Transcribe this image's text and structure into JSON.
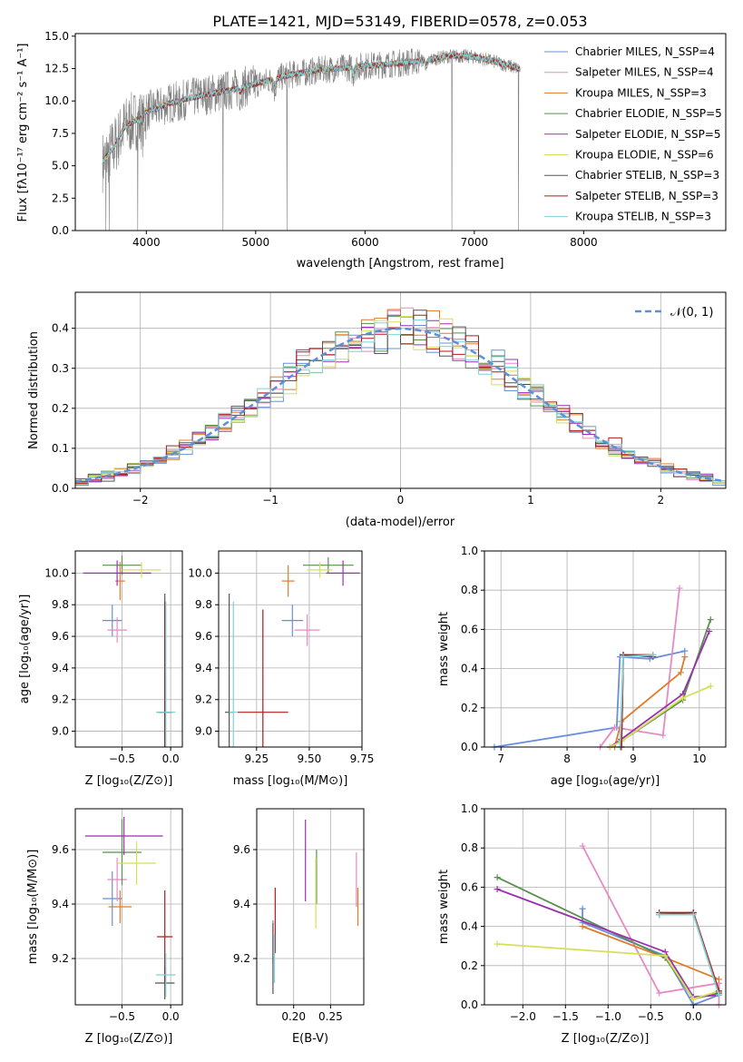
{
  "colors": {
    "chabrier_miles": "#6a8fd9",
    "salpeter_miles": "#e58ac4",
    "kroupa_miles": "#e07b2a",
    "chabrier_elodie": "#5a8f4e",
    "salpeter_elodie": "#9b2fb0",
    "kroupa_elodie": "#d5e05a",
    "chabrier_stelib": "#555555",
    "salpeter_stelib": "#b01a1a",
    "kroupa_stelib": "#7ed2d8",
    "data": "#808080",
    "normal": "#5b8fd9",
    "grid": "#b0b0b0"
  },
  "chart_data": [
    {
      "id": "spectrum",
      "type": "line",
      "title": "PLATE=1421, MJD=53149, FIBERID=0578, z=0.053",
      "xlabel": "wavelength [Angstrom, rest frame]",
      "ylabel": "Flux [fλ10⁻¹⁷ erg cm⁻² s⁻¹ A⁻¹]",
      "xlim": [
        3350,
        9300
      ],
      "ylim": [
        0,
        15.2
      ],
      "xticks": [
        "4000",
        "5000",
        "6000",
        "7000",
        "8000"
      ],
      "yticks": [
        "0.0",
        "2.5",
        "5.0",
        "7.5",
        "10.0",
        "12.5",
        "15.0"
      ],
      "grid": false,
      "legend_position": "top-right",
      "legend": [
        "Chabrier MILES, N_SSP=4",
        "Salpeter MILES, N_SSP=4",
        "Kroupa MILES, N_SSP=3",
        "Chabrier ELODIE, N_SSP=5",
        "Salpeter ELODIE, N_SSP=5",
        "Kroupa ELODIE, N_SSP=6",
        "Chabrier STELIB, N_SSP=3",
        "Salpeter STELIB, N_SSP=3",
        "Kroupa STELIB, N_SSP=3"
      ],
      "data_range": [
        3600,
        7420
      ],
      "continuum_points": [
        [
          3600,
          5.3
        ],
        [
          3700,
          6.4
        ],
        [
          3800,
          8.0
        ],
        [
          3900,
          8.5
        ],
        [
          4000,
          9.2
        ],
        [
          4200,
          9.8
        ],
        [
          4500,
          10.4
        ],
        [
          4800,
          10.9
        ],
        [
          5000,
          11.3
        ],
        [
          5300,
          12.0
        ],
        [
          5600,
          12.4
        ],
        [
          6000,
          12.7
        ],
        [
          6300,
          12.9
        ],
        [
          6600,
          13.2
        ],
        [
          6800,
          13.5
        ],
        [
          7000,
          13.4
        ],
        [
          7200,
          13.0
        ],
        [
          7400,
          12.5
        ]
      ],
      "absorption_features": [
        [
          3934,
          8.3
        ],
        [
          3969,
          7.9
        ],
        [
          4100,
          9.3
        ],
        [
          4304,
          9.6
        ],
        [
          4861,
          10.6
        ],
        [
          5175,
          10.8
        ],
        [
          5890,
          12.0
        ],
        [
          6563,
          12.6
        ]
      ],
      "spikes": [
        [
          3630,
          0.0
        ],
        [
          3660,
          0.0
        ],
        [
          3920,
          0.0
        ],
        [
          4700,
          0.0
        ],
        [
          5285,
          0.0
        ],
        [
          6795,
          0.0
        ],
        [
          7405,
          0.0
        ]
      ]
    },
    {
      "id": "residuals",
      "type": "histogram",
      "xlabel": "(data-model)/error",
      "ylabel": "Normed distribution",
      "xlim": [
        -2.5,
        2.5
      ],
      "ylim": [
        0,
        0.49
      ],
      "xticks": [
        "−2",
        "−1",
        "0",
        "1",
        "2"
      ],
      "yticks": [
        "0.0",
        "0.1",
        "0.2",
        "0.3",
        "0.4"
      ],
      "grid": true,
      "legend_position": "top-right",
      "legend": [
        "𝒩(0, 1)"
      ],
      "bin_width": 0.1
    },
    {
      "id": "age-vs-Z",
      "type": "scatter",
      "xlabel": "Z [log₁₀(Z/Z⊙)]",
      "ylabel": "age  [log₁₀(age/yr)]",
      "xlim": [
        -0.98,
        0.12
      ],
      "ylim": [
        8.9,
        10.14
      ],
      "xticks": [
        "−0.5",
        "0.0"
      ],
      "xtick_values": [
        -0.5,
        0.0
      ],
      "yticks": [
        "9.0",
        "9.2",
        "9.4",
        "9.6",
        "9.8",
        "10.0"
      ],
      "ytick_values": [
        9.0,
        9.2,
        9.4,
        9.6,
        9.8,
        10.0
      ],
      "grid": true,
      "points": [
        {
          "model": "chabrier_miles",
          "x": -0.6,
          "xerr": 0.1,
          "y": 9.7,
          "yerr": 0.1
        },
        {
          "model": "salpeter_miles",
          "x": -0.55,
          "xerr": 0.1,
          "y": 9.64,
          "yerr": 0.08
        },
        {
          "model": "kroupa_miles",
          "x": -0.52,
          "xerr": 0.05,
          "y": 9.95,
          "yerr": 0.12
        },
        {
          "model": "chabrier_elodie",
          "x": -0.5,
          "xerr": 0.2,
          "y": 10.05,
          "yerr": 0.06
        },
        {
          "model": "salpeter_elodie",
          "x": -0.55,
          "xerr": 0.35,
          "y": 10.0,
          "yerr": 0.08
        },
        {
          "model": "kroupa_elodie",
          "x": -0.3,
          "xerr": 0.2,
          "y": 10.02,
          "yerr": 0.05
        },
        {
          "model": "chabrier_stelib",
          "x": -0.06,
          "xerr": 0.08,
          "y": 9.12,
          "yerr": 0.75
        },
        {
          "model": "salpeter_stelib",
          "x": -0.06,
          "xerr": 0.06,
          "y": 9.12,
          "yerr": 0.7
        },
        {
          "model": "kroupa_stelib",
          "x": -0.05,
          "xerr": 0.1,
          "y": 9.12,
          "yerr": 0.7
        }
      ]
    },
    {
      "id": "age-vs-mass",
      "type": "scatter",
      "xlabel": "mass [log₁₀(M/M⊙)]",
      "ylabel": "",
      "xlim": [
        9.07,
        9.75
      ],
      "ylim": [
        8.9,
        10.14
      ],
      "xticks": [
        "9.25",
        "9.50",
        "9.75"
      ],
      "xtick_values": [
        9.25,
        9.5,
        9.75
      ],
      "yticks": [
        "9.0",
        "9.2",
        "9.4",
        "9.6",
        "9.8",
        "10.0"
      ],
      "ytick_values": [
        9.0,
        9.2,
        9.4,
        9.6,
        9.8,
        10.0
      ],
      "grid": true,
      "points": [
        {
          "model": "chabrier_miles",
          "x": 9.42,
          "xerr": 0.05,
          "y": 9.7,
          "yerr": 0.1
        },
        {
          "model": "salpeter_miles",
          "x": 9.49,
          "xerr": 0.06,
          "y": 9.64,
          "yerr": 0.1
        },
        {
          "model": "kroupa_miles",
          "x": 9.4,
          "xerr": 0.03,
          "y": 9.95,
          "yerr": 0.1
        },
        {
          "model": "chabrier_elodie",
          "x": 9.59,
          "xerr": 0.12,
          "y": 10.05,
          "yerr": 0.05
        },
        {
          "model": "salpeter_elodie",
          "x": 9.66,
          "xerr": 0.08,
          "y": 10.0,
          "yerr": 0.08
        },
        {
          "model": "kroupa_elodie",
          "x": 9.55,
          "xerr": 0.06,
          "y": 10.02,
          "yerr": 0.05
        },
        {
          "model": "chabrier_stelib",
          "x": 9.12,
          "xerr": 0.02,
          "y": 9.12,
          "yerr": 0.75
        },
        {
          "model": "salpeter_stelib",
          "x": 9.28,
          "xerr": 0.12,
          "y": 9.12,
          "yerr": 0.65
        },
        {
          "model": "kroupa_stelib",
          "x": 9.14,
          "xerr": 0.02,
          "y": 9.12,
          "yerr": 0.7
        }
      ]
    },
    {
      "id": "weight-vs-age",
      "type": "line",
      "xlabel": "age  [log₁₀(age/yr)]",
      "ylabel": "mass weight",
      "xlim": [
        6.75,
        10.4
      ],
      "ylim": [
        0,
        1.0
      ],
      "xticks": [
        "7",
        "8",
        "9",
        "10"
      ],
      "xtick_values": [
        7,
        8,
        9,
        10
      ],
      "yticks": [
        "0.0",
        "0.2",
        "0.4",
        "0.6",
        "0.8",
        "1.0"
      ],
      "ytick_values": [
        0,
        0.2,
        0.4,
        0.6,
        0.8,
        1.0
      ],
      "grid": true,
      "series": [
        {
          "model": "chabrier_miles",
          "x": [
            6.9,
            8.75,
            8.8,
            9.25,
            9.78
          ],
          "y": [
            0.0,
            0.1,
            0.46,
            0.45,
            0.49
          ]
        },
        {
          "model": "salpeter_miles",
          "x": [
            8.5,
            8.72,
            9.45,
            9.7
          ],
          "y": [
            0.0,
            0.1,
            0.06,
            0.81
          ]
        },
        {
          "model": "kroupa_miles",
          "x": [
            8.72,
            8.82,
            9.72,
            9.78
          ],
          "y": [
            0.0,
            0.13,
            0.38,
            0.46
          ]
        },
        {
          "model": "chabrier_elodie",
          "x": [
            8.65,
            8.82,
            9.75,
            10.17
          ],
          "y": [
            0.0,
            0.03,
            0.24,
            0.65
          ]
        },
        {
          "model": "salpeter_elodie",
          "x": [
            8.65,
            8.82,
            9.75,
            10.15
          ],
          "y": [
            0.0,
            0.04,
            0.27,
            0.59
          ]
        },
        {
          "model": "kroupa_elodie",
          "x": [
            8.65,
            8.82,
            9.75,
            10.17
          ],
          "y": [
            0.0,
            0.03,
            0.25,
            0.31
          ]
        },
        {
          "model": "chabrier_stelib",
          "x": [
            8.82,
            8.85,
            9.3
          ],
          "y": [
            0.0,
            0.47,
            0.46
          ]
        },
        {
          "model": "salpeter_stelib",
          "x": [
            8.82,
            8.85,
            9.3
          ],
          "y": [
            0.0,
            0.47,
            0.47
          ]
        },
        {
          "model": "kroupa_stelib",
          "x": [
            8.8,
            8.85,
            9.3
          ],
          "y": [
            0.0,
            0.46,
            0.47
          ]
        }
      ]
    },
    {
      "id": "mass-vs-Z",
      "type": "scatter",
      "xlabel": "Z [log₁₀(Z/Z⊙)]",
      "ylabel": "mass [log₁₀(M/M⊙)]",
      "xlim": [
        -0.98,
        0.12
      ],
      "ylim": [
        9.03,
        9.75
      ],
      "xticks": [
        "−0.5",
        "0.0"
      ],
      "xtick_values": [
        -0.5,
        0.0
      ],
      "yticks": [
        "9.2",
        "9.4",
        "9.6"
      ],
      "ytick_values": [
        9.2,
        9.4,
        9.6
      ],
      "grid": true,
      "points": [
        {
          "model": "chabrier_miles",
          "x": -0.6,
          "xerr": 0.1,
          "y": 9.42,
          "yerr": 0.1
        },
        {
          "model": "salpeter_miles",
          "x": -0.55,
          "xerr": 0.1,
          "y": 9.49,
          "yerr": 0.08
        },
        {
          "model": "kroupa_miles",
          "x": -0.52,
          "xerr": 0.12,
          "y": 9.39,
          "yerr": 0.06
        },
        {
          "model": "chabrier_elodie",
          "x": -0.5,
          "xerr": 0.2,
          "y": 9.59,
          "yerr": 0.12
        },
        {
          "model": "salpeter_elodie",
          "x": -0.48,
          "xerr": 0.4,
          "y": 9.65,
          "yerr": 0.07
        },
        {
          "model": "kroupa_elodie",
          "x": -0.35,
          "xerr": 0.2,
          "y": 9.55,
          "yerr": 0.08
        },
        {
          "model": "chabrier_stelib",
          "x": -0.06,
          "xerr": 0.1,
          "y": 9.11,
          "yerr": 0.06
        },
        {
          "model": "salpeter_stelib",
          "x": -0.06,
          "xerr": 0.08,
          "y": 9.28,
          "yerr": 0.17
        },
        {
          "model": "kroupa_stelib",
          "x": -0.05,
          "xerr": 0.1,
          "y": 9.14,
          "yerr": 0.08
        }
      ]
    },
    {
      "id": "mass-vs-EBV",
      "type": "scatter",
      "xlabel": "E(B-V)",
      "ylabel": "",
      "xlim": [
        0.15,
        0.295
      ],
      "ylim": [
        9.03,
        9.75
      ],
      "xticks": [
        "0.20",
        "0.25"
      ],
      "xtick_values": [
        0.2,
        0.25
      ],
      "yticks": [
        "9.2",
        "9.4",
        "9.6"
      ],
      "ytick_values": [
        9.2,
        9.4,
        9.6
      ],
      "grid": true,
      "points": [
        {
          "model": "chabrier_miles",
          "x": 0.172,
          "xerr": 0.0,
          "y": 9.26,
          "yerr": 0.08
        },
        {
          "model": "salpeter_miles",
          "x": 0.285,
          "xerr": 0.0,
          "y": 9.49,
          "yerr": 0.1
        },
        {
          "model": "kroupa_miles",
          "x": 0.287,
          "xerr": 0.0,
          "y": 9.39,
          "yerr": 0.07
        },
        {
          "model": "chabrier_elodie",
          "x": 0.231,
          "xerr": 0.0,
          "y": 9.5,
          "yerr": 0.1
        },
        {
          "model": "salpeter_elodie",
          "x": 0.216,
          "xerr": 0.0,
          "y": 9.56,
          "yerr": 0.15
        },
        {
          "model": "kroupa_elodie",
          "x": 0.23,
          "xerr": 0.0,
          "y": 9.44,
          "yerr": 0.13
        },
        {
          "model": "chabrier_stelib",
          "x": 0.172,
          "xerr": 0.0,
          "y": 9.2,
          "yerr": 0.13
        },
        {
          "model": "salpeter_stelib",
          "x": 0.175,
          "xerr": 0.0,
          "y": 9.34,
          "yerr": 0.12
        },
        {
          "model": "kroupa_stelib",
          "x": 0.174,
          "xerr": 0.0,
          "y": 9.2,
          "yerr": 0.09
        }
      ]
    },
    {
      "id": "weight-vs-Z",
      "type": "line",
      "xlabel": "Z [log₁₀(Z/Z⊙)]",
      "ylabel": "mass weight",
      "xlim": [
        -2.45,
        0.38
      ],
      "ylim": [
        0,
        1.0
      ],
      "xticks": [
        "−2.0",
        "−1.5",
        "−1.0",
        "−0.5",
        "0.0"
      ],
      "xtick_values": [
        -2.0,
        -1.5,
        -1.0,
        -0.5,
        0.0
      ],
      "yticks": [
        "0.0",
        "0.2",
        "0.4",
        "0.6",
        "0.8",
        "1.0"
      ],
      "ytick_values": [
        0,
        0.2,
        0.4,
        0.6,
        0.8,
        1.0
      ],
      "grid": true,
      "series": [
        {
          "model": "chabrier_miles",
          "x": [
            -1.3,
            -1.3,
            -0.33,
            0.0,
            0.0,
            0.3
          ],
          "y": [
            0.49,
            0.42,
            0.25,
            0.0,
            0.0,
            0.05
          ]
        },
        {
          "model": "salpeter_miles",
          "x": [
            -1.3,
            -0.4,
            0.3,
            0.3
          ],
          "y": [
            0.81,
            0.06,
            0.11,
            0.0
          ]
        },
        {
          "model": "kroupa_miles",
          "x": [
            -1.3,
            -0.33,
            0.3
          ],
          "y": [
            0.4,
            0.24,
            0.13
          ]
        },
        {
          "model": "chabrier_elodie",
          "x": [
            -2.3,
            -0.33,
            0.0,
            0.3
          ],
          "y": [
            0.65,
            0.24,
            0.03,
            0.06
          ]
        },
        {
          "model": "salpeter_elodie",
          "x": [
            -2.3,
            -0.33,
            0.0,
            0.3
          ],
          "y": [
            0.59,
            0.27,
            0.04,
            0.05
          ]
        },
        {
          "model": "kroupa_elodie",
          "x": [
            -2.3,
            -0.33,
            0.0,
            0.3
          ],
          "y": [
            0.31,
            0.25,
            0.03,
            0.07
          ]
        },
        {
          "model": "chabrier_stelib",
          "x": [
            -0.4,
            0.0,
            0.3
          ],
          "y": [
            0.46,
            0.47,
            0.06
          ]
        },
        {
          "model": "salpeter_stelib",
          "x": [
            -0.4,
            0.0,
            0.3
          ],
          "y": [
            0.47,
            0.47,
            0.07
          ]
        },
        {
          "model": "kroupa_stelib",
          "x": [
            -0.4,
            0.0,
            0.3
          ],
          "y": [
            0.46,
            0.46,
            0.05
          ]
        }
      ]
    }
  ]
}
